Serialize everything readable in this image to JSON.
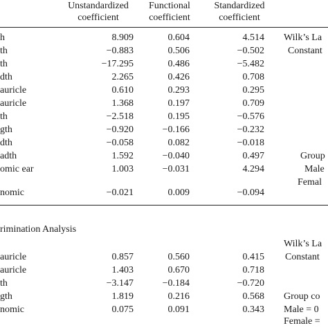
{
  "headers": {
    "unstandardized": [
      "Unstandardized",
      "coefficient"
    ],
    "functional": [
      "Functional",
      "coefficient"
    ],
    "standardized": [
      "Standardized",
      "coefficient"
    ]
  },
  "table1": [
    {
      "label": "h",
      "u": "8.909",
      "f": "0.604",
      "s": "4.514"
    },
    {
      "label": "th",
      "u": "−0.883",
      "f": "0.506",
      "s": "−0.502"
    },
    {
      "label": "th",
      "u": "−17.295",
      "f": "0.486",
      "s": "−5.482"
    },
    {
      "label": "dth",
      "u": "2.265",
      "f": "0.426",
      "s": "0.708"
    },
    {
      "label": "auricle",
      "u": "0.610",
      "f": "0.293",
      "s": "0.295"
    },
    {
      "label": "auricle",
      "u": "1.368",
      "f": "0.197",
      "s": "0.709"
    },
    {
      "label": "th",
      "u": "−2.518",
      "f": "0.195",
      "s": "−0.576"
    },
    {
      "label": "gth",
      "u": "−0.920",
      "f": "−0.166",
      "s": "−0.232"
    },
    {
      "label": "dth",
      "u": "−0.058",
      "f": "0.082",
      "s": "−0.018"
    },
    {
      "label": "adth",
      "u": "1.592",
      "f": "−0.040",
      "s": "0.497"
    },
    {
      "label": "omic ear",
      "u": "1.003",
      "f": "−0.031",
      "s": "4.294"
    }
  ],
  "table1_last": {
    "label": "nomic",
    "u": "−0.021",
    "f": "0.009",
    "s": "−0.094"
  },
  "table1_side": [
    "Wilk’s La",
    "Constant",
    "Group",
    "Male",
    "Femal"
  ],
  "section2_title": "rimination Analysis",
  "table2": [
    {
      "label": "auricle",
      "u": "0.857",
      "f": "0.560",
      "s": "0.415"
    },
    {
      "label": "auricle",
      "u": "1.403",
      "f": "0.670",
      "s": "0.718"
    },
    {
      "label": "th",
      "u": "−3.147",
      "f": "−0.184",
      "s": "−0.720"
    },
    {
      "label": "gth",
      "u": "1.819",
      "f": "0.216",
      "s": "0.568"
    },
    {
      "label": "nomic",
      "u": "0.075",
      "f": "0.091",
      "s": "0.343"
    }
  ],
  "table2_side": [
    "Wilk’s La",
    "Constant",
    "Group co",
    "Male = 0",
    "Female ="
  ]
}
